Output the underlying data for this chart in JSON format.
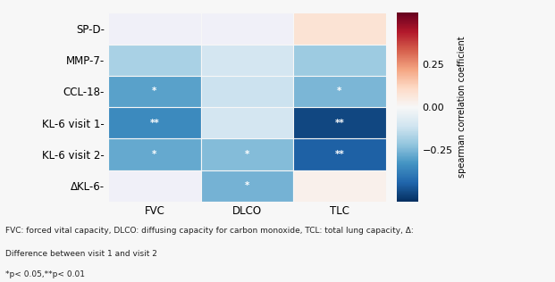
{
  "rows": [
    "SP-D-",
    "MMP-7-",
    "CCL-18-",
    "KL-6 visit 1-",
    "KL-6 visit 2-",
    "ΔKL-6-"
  ],
  "cols": [
    "FVC",
    "DLCO",
    "TLC"
  ],
  "values": [
    [
      null,
      null,
      0.08
    ],
    [
      -0.18,
      -0.1,
      -0.2
    ],
    [
      -0.3,
      -0.12,
      -0.25
    ],
    [
      -0.35,
      -0.1,
      -0.5
    ],
    [
      -0.28,
      -0.24,
      -0.45
    ],
    [
      null,
      -0.26,
      0.03
    ]
  ],
  "annotations": [
    [
      "",
      "",
      ""
    ],
    [
      "",
      "",
      ""
    ],
    [
      "*",
      "",
      "*"
    ],
    [
      "**",
      "",
      "**"
    ],
    [
      "*",
      "*",
      "**"
    ],
    [
      "",
      "*",
      ""
    ]
  ],
  "vmin": -0.55,
  "vmax": 0.55,
  "cbar_ticks": [
    0.25,
    0.0,
    -0.25
  ],
  "cbar_label": "spearman correlation coefficient",
  "footnote1": "FVC: forced vital capacity, DLCO: diffusing capacity for carbon monoxide, TCL: total lung capacity, Δ:",
  "footnote2": "Difference between visit 1 and visit 2",
  "footnote3": "*p< 0.05,**p< 0.01",
  "bg_color": "#f7f7f7",
  "nan_color": "#f0f0f8",
  "white_color": "#ffffff"
}
